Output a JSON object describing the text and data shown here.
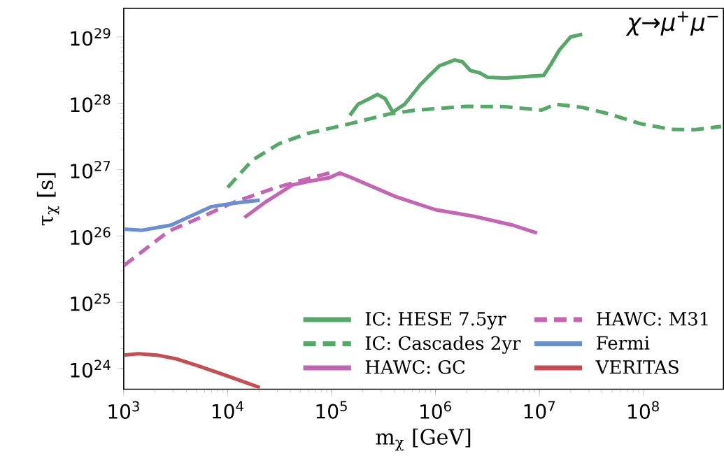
{
  "chart_data": {
    "type": "line",
    "xlabel": "m$_{χ}$ [GeV]",
    "ylabel": "τ$_{χ}$ [s]",
    "log": "xy",
    "grid": false,
    "legend": "bottom right",
    "annotations": [
      "χ→μ$^{+}$μ$^{−}$"
    ],
    "xlim": [
      1000,
      590000000.0
    ],
    "ylim": [
      4.9e+23,
      2.7e+29
    ],
    "xticks": [
      {
        "value": 1000,
        "label": "10$^{3}$"
      },
      {
        "value": 10000,
        "label": "10$^{4}$"
      },
      {
        "value": 100000,
        "label": "10$^{5}$"
      },
      {
        "value": 1000000,
        "label": "10$^{6}$"
      },
      {
        "value": 10000000,
        "label": "10$^{7}$"
      },
      {
        "value": 100000000,
        "label": "10$^{8}$"
      }
    ],
    "yticks": [
      {
        "value": 1e+24,
        "label": "10$^{24}$"
      },
      {
        "value": 1e+25,
        "label": "10$^{25}$"
      },
      {
        "value": 1e+26,
        "label": "10$^{26}$"
      },
      {
        "value": 1e+27,
        "label": "10$^{27}$"
      },
      {
        "value": 1e+28,
        "label": "10$^{28}$"
      },
      {
        "value": 1e+29,
        "label": "10$^{29}$"
      }
    ],
    "series": [
      {
        "name": "IC: HESE 7.5yr",
        "color": "#55a868",
        "line_style": "solid",
        "x": [
          150000.0,
          180000.0,
          233000.0,
          276000.0,
          327000.0,
          388000.0,
          506000.0,
          710000.0,
          840000.0,
          1090000.0,
          1530000.0,
          1820000.0,
          2160000.0,
          2670000.0,
          3170000.0,
          4660000.0,
          11000000.0,
          13000000.0,
          15500000.0,
          19900000.0,
          25800000.0
        ],
        "values": [
          6.6e+27,
          9.7e+27,
          1.18e+28,
          1.36e+28,
          1.18e+28,
          7.4e+27,
          9.7e+27,
          1.89e+28,
          2.47e+28,
          3.67e+28,
          4.5e+28,
          4.2e+28,
          3.13e+28,
          2.88e+28,
          2.47e+28,
          2.4e+28,
          2.64e+28,
          3.95e+28,
          6.3e+28,
          1e+29,
          1.1e+29
        ]
      },
      {
        "name": "IC: Cascades 2yr",
        "color": "#55a868",
        "line_style": "dashed",
        "x": [
          10000.0,
          17200.0,
          31300.0,
          59300.0,
          152000.0,
          357000.0,
          650000.0,
          1980000.0,
          4660000.0,
          10500000.0,
          14200000.0,
          25800000.0,
          47000000.0,
          93000000.0,
          185000000.0,
          308000000.0,
          560000000.0
        ],
        "values": [
          5.4e+26,
          1.38e+27,
          2.47e+27,
          3.53e+27,
          4.94e+27,
          6.9e+27,
          7.9e+27,
          9e+27,
          8.9e+27,
          7.9e+27,
          9.7e+27,
          8.7e+27,
          6.9e+27,
          4.94e+27,
          4.05e+27,
          4e+27,
          4.47e+27
        ]
      },
      {
        "name": "HAWC: GC",
        "color": "#c465b4",
        "line_style": "solid",
        "x": [
          14500.0,
          23200.0,
          42200.0,
          64600.0,
          95000.0,
          120000.0,
          152000.0,
          425000.0,
          1000000.0,
          2350000.0,
          5520000.0,
          9500000.0
        ],
        "values": [
          1.9e+26,
          3.26e+26,
          5.9e+26,
          6.8e+26,
          7.55e+26,
          8.9e+26,
          7.7e+26,
          3.86e+26,
          2.49e+26,
          1.98e+26,
          1.46e+26,
          1.11e+26
        ]
      },
      {
        "name": "HAWC: M31",
        "color": "#c465b4",
        "line_style": "dashed",
        "x": [
          1000.0,
          2730.0,
          4970.0,
          11700.0,
          27500.0,
          50000.0,
          95000.0
        ],
        "values": [
          3.57e+25,
          1.19e+26,
          1.78e+26,
          3.26e+26,
          5.2e+26,
          6.8e+26,
          8.9e+26
        ]
      },
      {
        "name": "Fermi",
        "color": "#6a8fd0",
        "line_style": "solid",
        "x": [
          1000.0,
          1500.0,
          2850.0,
          7000.0,
          11700.0,
          20400.0
        ],
        "values": [
          1.27e+26,
          1.22e+26,
          1.46e+26,
          2.77e+26,
          3.13e+26,
          3.48e+26
        ]
      },
      {
        "name": "VERITAS",
        "color": "#c44e52",
        "line_style": "solid",
        "x": [
          1000.0,
          1380.0,
          2100.0,
          3240.0,
          4970.0,
          9000.0,
          20400.0
        ],
        "values": [
          1.6e+24,
          1.68e+24,
          1.6e+24,
          1.4e+24,
          1.13e+24,
          8.2e+23,
          5.2e+23
        ]
      }
    ]
  }
}
